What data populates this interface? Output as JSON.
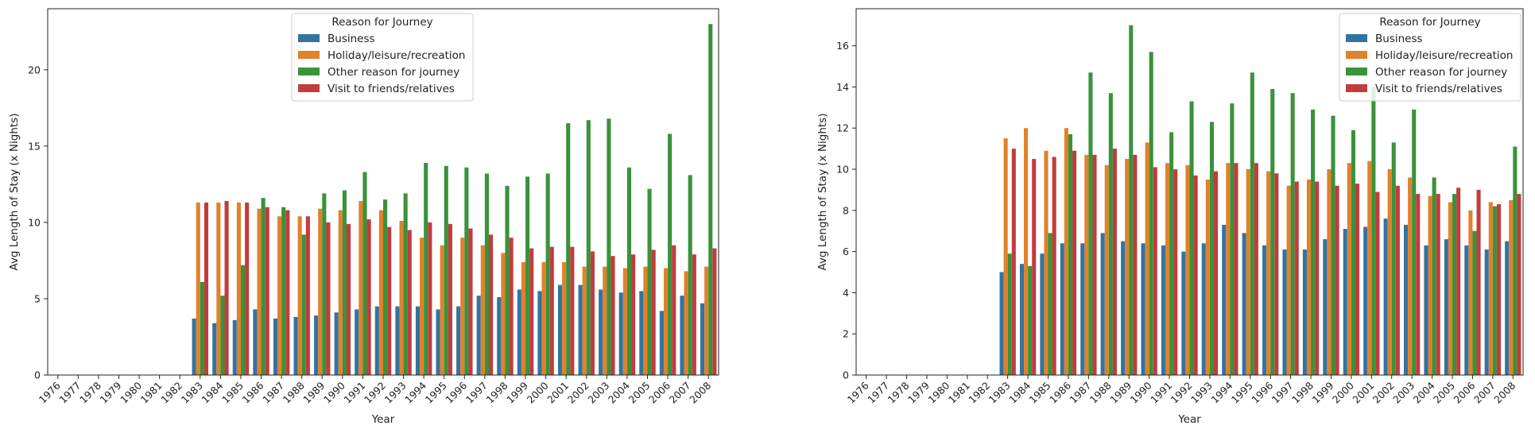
{
  "colors": {
    "Business": "#3274a1",
    "Holiday/leisure/recreation": "#e1812c",
    "Other reason for journey": "#3a923a",
    "Visit to friends/relatives": "#c03d3e"
  },
  "chart_data": [
    {
      "type": "bar",
      "title": "",
      "xlabel": "Year",
      "ylabel": "Avg Length of Stay (x Nights)",
      "ylim": [
        0,
        24
      ],
      "yticks": [
        0,
        5,
        10,
        15,
        20
      ],
      "legend_title": "Reason for Journey",
      "legend_position": "upper-center",
      "categories": [
        "1976",
        "1977",
        "1978",
        "1979",
        "1980",
        "1981",
        "1982",
        "1983",
        "1984",
        "1985",
        "1986",
        "1987",
        "1988",
        "1989",
        "1990",
        "1991",
        "1992",
        "1993",
        "1994",
        "1995",
        "1996",
        "1997",
        "1998",
        "1999",
        "2000",
        "2001",
        "2002",
        "2003",
        "2004",
        "2005",
        "2006",
        "2007",
        "2008"
      ],
      "series": [
        {
          "name": "Business",
          "values": [
            0,
            0,
            0,
            0,
            0,
            0,
            0,
            3.7,
            3.4,
            3.6,
            4.3,
            3.7,
            3.8,
            3.9,
            4.1,
            4.3,
            4.5,
            4.5,
            4.5,
            4.3,
            4.5,
            5.2,
            5.1,
            5.6,
            5.5,
            5.9,
            5.9,
            5.6,
            5.4,
            5.5,
            4.2,
            5.2,
            4.7
          ]
        },
        {
          "name": "Holiday/leisure/recreation",
          "values": [
            0,
            0,
            0,
            0,
            0,
            0,
            0,
            11.3,
            11.3,
            11.3,
            10.9,
            10.4,
            10.4,
            10.9,
            10.8,
            11.4,
            10.8,
            10.1,
            9.0,
            8.5,
            9.0,
            8.5,
            8.0,
            7.4,
            7.4,
            7.4,
            7.1,
            7.1,
            7.0,
            7.1,
            7.0,
            6.8,
            7.1
          ]
        },
        {
          "name": "Other reason for journey",
          "values": [
            0,
            0,
            0,
            0,
            0,
            0,
            0,
            6.1,
            5.2,
            7.2,
            11.6,
            11.0,
            9.2,
            11.9,
            12.1,
            13.3,
            11.5,
            11.9,
            13.9,
            13.7,
            13.6,
            13.2,
            12.4,
            13.0,
            13.2,
            16.5,
            16.7,
            16.8,
            13.6,
            12.2,
            15.8,
            13.1,
            23.0
          ]
        },
        {
          "name": "Visit to friends/relatives",
          "values": [
            0,
            0,
            0,
            0,
            0,
            0,
            0,
            11.3,
            11.4,
            11.3,
            11.0,
            10.8,
            10.4,
            10.0,
            9.9,
            10.2,
            9.7,
            9.5,
            10.0,
            9.9,
            9.6,
            9.2,
            9.0,
            8.3,
            8.4,
            8.4,
            8.1,
            7.8,
            7.9,
            8.2,
            8.5,
            7.9,
            8.3
          ]
        }
      ]
    },
    {
      "type": "bar",
      "title": "",
      "xlabel": "Year",
      "ylabel": "Avg Length of Stay (x Nights)",
      "ylim": [
        0,
        17.8
      ],
      "yticks": [
        0,
        2,
        4,
        6,
        8,
        10,
        12,
        14,
        16
      ],
      "legend_title": "Reason for Journey",
      "legend_position": "upper-right",
      "categories": [
        "1976",
        "1977",
        "1978",
        "1979",
        "1980",
        "1981",
        "1982",
        "1983",
        "1984",
        "1985",
        "1986",
        "1987",
        "1988",
        "1989",
        "1990",
        "1991",
        "1992",
        "1993",
        "1994",
        "1995",
        "1996",
        "1997",
        "1998",
        "1999",
        "2000",
        "2001",
        "2002",
        "2003",
        "2004",
        "2005",
        "2006",
        "2007",
        "2008"
      ],
      "series": [
        {
          "name": "Business",
          "values": [
            0,
            0,
            0,
            0,
            0,
            0,
            0,
            5.0,
            5.4,
            5.9,
            6.4,
            6.4,
            6.9,
            6.5,
            6.4,
            6.3,
            6.0,
            6.4,
            7.3,
            6.9,
            6.3,
            6.1,
            6.1,
            6.6,
            7.1,
            7.2,
            7.6,
            7.3,
            6.3,
            6.6,
            6.3,
            6.1,
            6.5
          ]
        },
        {
          "name": "Holiday/leisure/recreation",
          "values": [
            0,
            0,
            0,
            0,
            0,
            0,
            0,
            11.5,
            12.0,
            10.9,
            12.0,
            10.7,
            10.2,
            10.5,
            11.3,
            10.3,
            10.2,
            9.5,
            10.3,
            10.0,
            9.9,
            9.2,
            9.5,
            10.0,
            10.3,
            10.4,
            10.0,
            9.6,
            8.7,
            8.4,
            8.0,
            8.4,
            8.5
          ]
        },
        {
          "name": "Other reason for journey",
          "values": [
            0,
            0,
            0,
            0,
            0,
            0,
            0,
            5.9,
            5.3,
            6.9,
            11.7,
            14.7,
            13.7,
            17.0,
            15.7,
            11.8,
            13.3,
            12.3,
            13.2,
            14.7,
            13.9,
            13.7,
            12.9,
            12.6,
            11.9,
            14.0,
            11.3,
            12.9,
            9.6,
            8.8,
            7.0,
            8.2,
            11.1
          ]
        },
        {
          "name": "Visit to friends/relatives",
          "values": [
            0,
            0,
            0,
            0,
            0,
            0,
            0,
            11.0,
            10.5,
            10.6,
            10.9,
            10.7,
            11.0,
            10.7,
            10.1,
            10.0,
            9.7,
            9.9,
            10.3,
            10.3,
            9.8,
            9.4,
            9.4,
            9.2,
            9.3,
            8.9,
            9.2,
            8.8,
            8.8,
            9.1,
            9.0,
            8.3,
            8.8
          ]
        }
      ]
    }
  ]
}
